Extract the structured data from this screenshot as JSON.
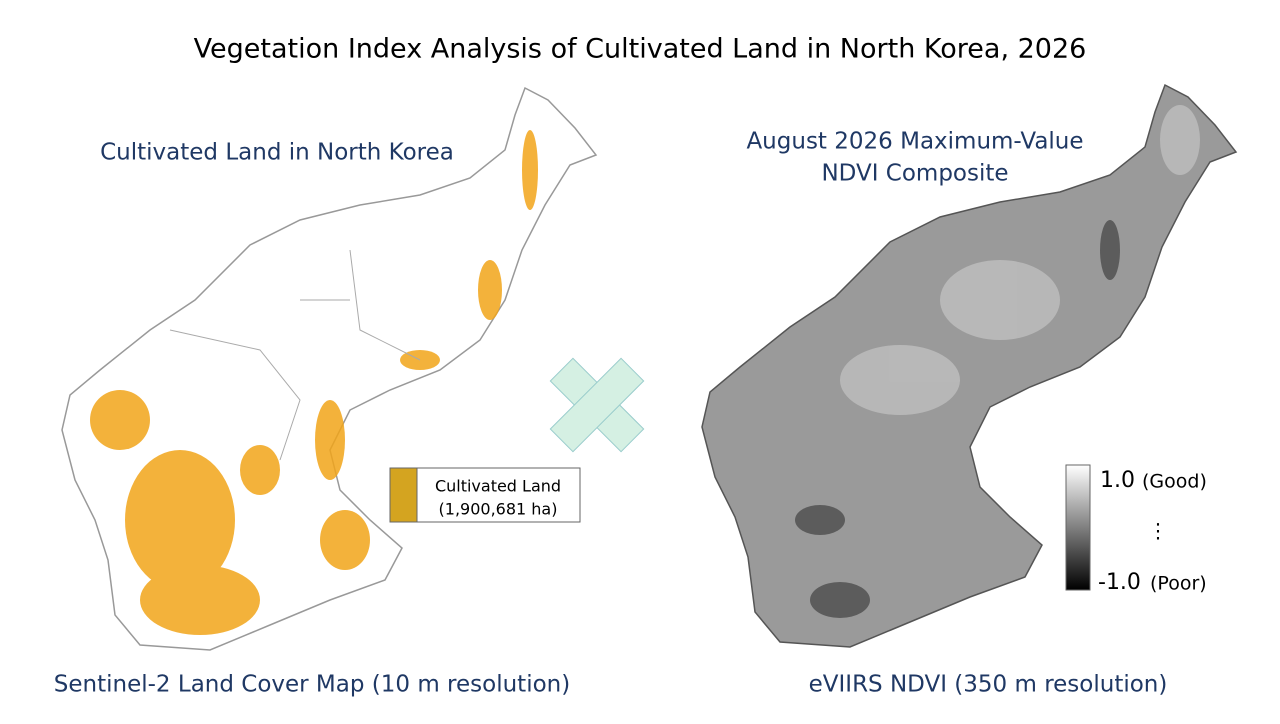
{
  "title": "Vegetation Index Analysis of Cultivated Land in North Korea, 2026",
  "left_map": {
    "title": "Cultivated Land in North Korea",
    "legend": {
      "label": "Cultivated Land",
      "area": "(1,900,681 ha)"
    },
    "caption": "Sentinel-2 Land Cover Map (10 m resolution)"
  },
  "right_map": {
    "title_lines": [
      "August 2026 Maximum-Value",
      "NDVI Composite"
    ],
    "colorbar": {
      "top_value": "1.0",
      "top_note": "(Good)",
      "middle": "⋮",
      "bottom_value": "-1.0",
      "bottom_note": "(Poor)"
    },
    "caption": "eVIIRS NDVI (350 m resolution)"
  }
}
